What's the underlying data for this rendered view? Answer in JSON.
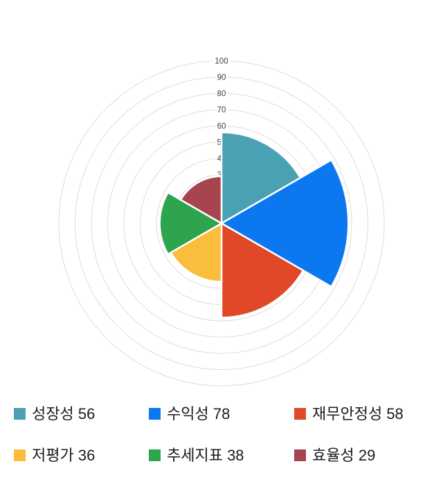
{
  "chart_data": {
    "type": "bar",
    "subtype": "polar-rose",
    "title": "",
    "categories": [
      "성장성",
      "수익성",
      "재무안정성",
      "저평가",
      "추세지표",
      "효율성"
    ],
    "values": [
      56,
      78,
      58,
      36,
      38,
      29
    ],
    "colors": [
      "#4BA1B4",
      "#0B78F0",
      "#E04828",
      "#FBBD3C",
      "#2EA44F",
      "#A84450"
    ],
    "start_angle_deg": 0,
    "sector_span_deg": 60,
    "direction": "clockwise",
    "radial_axis": {
      "min": 0,
      "max": 100,
      "tick_step": 10,
      "tick_labels": [
        "10",
        "20",
        "30",
        "40",
        "50",
        "60",
        "70",
        "80",
        "90",
        "100"
      ]
    },
    "grid": "concentric-circles",
    "gridline_color": "#dcdcdc",
    "tick_label_color": "#3d3d3d",
    "sector_border_color": "#ffffff",
    "legend_position": "bottom"
  },
  "legend": {
    "items": [
      {
        "text": "성장성 56",
        "color": "#4BA1B4"
      },
      {
        "text": "수익성 78",
        "color": "#0B78F0"
      },
      {
        "text": "재무안정성 58",
        "color": "#E04828"
      },
      {
        "text": "저평가 36",
        "color": "#FBBD3C"
      },
      {
        "text": "추세지표 38",
        "color": "#2EA44F"
      },
      {
        "text": "효율성 29",
        "color": "#A84450"
      }
    ]
  }
}
